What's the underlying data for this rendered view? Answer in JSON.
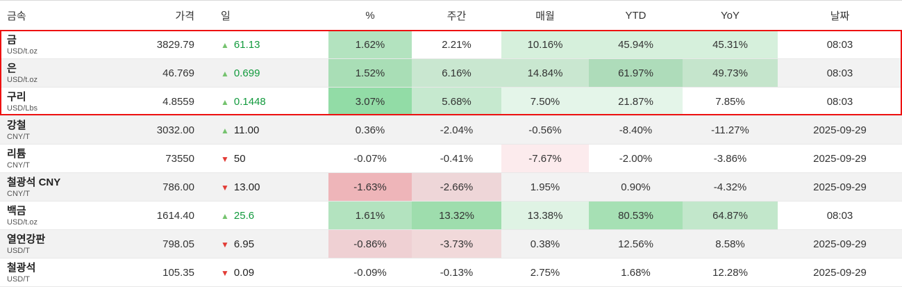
{
  "table": {
    "icons": {
      "up": "▲",
      "down": "▼"
    },
    "highlight_box": {
      "rows_covered": [
        "금",
        "은",
        "구리"
      ],
      "border_color": "#ee1111"
    },
    "columns": [
      {
        "key": "name",
        "label": "금속"
      },
      {
        "key": "price",
        "label": "가격"
      },
      {
        "key": "day",
        "label": "일"
      },
      {
        "key": "pct",
        "label": "%"
      },
      {
        "key": "week",
        "label": "주간"
      },
      {
        "key": "month",
        "label": "매월"
      },
      {
        "key": "ytd",
        "label": "YTD"
      },
      {
        "key": "yoy",
        "label": "YoY"
      },
      {
        "key": "date",
        "label": "날짜"
      }
    ],
    "rows": [
      {
        "name": "금",
        "unit": "USD/t.oz",
        "price": "3829.79",
        "direction": "up",
        "day": "61.13",
        "day_color": "green",
        "cells": {
          "pct": {
            "text": "1.62%",
            "bg": "#b3e3bf"
          },
          "week": {
            "text": "2.21%",
            "bg": null
          },
          "month": {
            "text": "10.16%",
            "bg": "#d6f0dc"
          },
          "ytd": {
            "text": "45.94%",
            "bg": "#d6f0dc"
          },
          "yoy": {
            "text": "45.31%",
            "bg": "#d6f0dc"
          }
        },
        "date": "08:03"
      },
      {
        "name": "은",
        "unit": "USD/t.oz",
        "price": "46.769",
        "direction": "up",
        "day": "0.699",
        "day_color": "green",
        "cells": {
          "pct": {
            "text": "1.52%",
            "bg": "#a9deb6"
          },
          "week": {
            "text": "6.16%",
            "bg": "#c9e7d0"
          },
          "month": {
            "text": "14.84%",
            "bg": "#c9e7d0"
          },
          "ytd": {
            "text": "61.97%",
            "bg": "#aedcba"
          },
          "yoy": {
            "text": "49.73%",
            "bg": "#c5e5cc"
          }
        },
        "date": "08:03"
      },
      {
        "name": "구리",
        "unit": "USD/Lbs",
        "price": "4.8559",
        "direction": "up",
        "day": "0.1448",
        "day_color": "green",
        "cells": {
          "pct": {
            "text": "3.07%",
            "bg": "#92dca6"
          },
          "week": {
            "text": "5.68%",
            "bg": "#c6e9cf"
          },
          "month": {
            "text": "7.50%",
            "bg": "#e4f5e9"
          },
          "ytd": {
            "text": "21.87%",
            "bg": "#e4f5e9"
          },
          "yoy": {
            "text": "7.85%",
            "bg": null
          }
        },
        "date": "08:03"
      },
      {
        "name": "강철",
        "unit": "CNY/T",
        "price": "3032.00",
        "direction": "up",
        "day": "11.00",
        "day_color": "dark",
        "cells": {
          "pct": {
            "text": "0.36%",
            "bg": null
          },
          "week": {
            "text": "-2.04%",
            "bg": null
          },
          "month": {
            "text": "-0.56%",
            "bg": null
          },
          "ytd": {
            "text": "-8.40%",
            "bg": null
          },
          "yoy": {
            "text": "-11.27%",
            "bg": null
          }
        },
        "date": "2025-09-29"
      },
      {
        "name": "리튬",
        "unit": "CNY/T",
        "price": "73550",
        "direction": "down",
        "day": "50",
        "day_color": "dark",
        "cells": {
          "pct": {
            "text": "-0.07%",
            "bg": null
          },
          "week": {
            "text": "-0.41%",
            "bg": null
          },
          "month": {
            "text": "-7.67%",
            "bg": "#fcebed"
          },
          "ytd": {
            "text": "-2.00%",
            "bg": null
          },
          "yoy": {
            "text": "-3.86%",
            "bg": null
          }
        },
        "date": "2025-09-29"
      },
      {
        "name": "철광석 CNY",
        "unit": "CNY/T",
        "price": "786.00",
        "direction": "down",
        "day": "13.00",
        "day_color": "dark",
        "cells": {
          "pct": {
            "text": "-1.63%",
            "bg": "#eeb5b9"
          },
          "week": {
            "text": "-2.66%",
            "bg": "#eed6d8"
          },
          "month": {
            "text": "1.95%",
            "bg": null
          },
          "ytd": {
            "text": "0.90%",
            "bg": null
          },
          "yoy": {
            "text": "-4.32%",
            "bg": null
          }
        },
        "date": "2025-09-29"
      },
      {
        "name": "백금",
        "unit": "USD/t.oz",
        "price": "1614.40",
        "direction": "up",
        "day": "25.6",
        "day_color": "green",
        "cells": {
          "pct": {
            "text": "1.61%",
            "bg": "#b3e3bf"
          },
          "week": {
            "text": "13.32%",
            "bg": "#9eddad"
          },
          "month": {
            "text": "13.38%",
            "bg": "#dff3e4"
          },
          "ytd": {
            "text": "80.53%",
            "bg": "#a6e0b4"
          },
          "yoy": {
            "text": "64.87%",
            "bg": "#c2e7cb"
          }
        },
        "date": "08:03"
      },
      {
        "name": "열연강판",
        "unit": "USD/T",
        "price": "798.05",
        "direction": "down",
        "day": "6.95",
        "day_color": "dark",
        "cells": {
          "pct": {
            "text": "-0.86%",
            "bg": "#efd0d3"
          },
          "week": {
            "text": "-3.73%",
            "bg": "#f1d9da"
          },
          "month": {
            "text": "0.38%",
            "bg": null
          },
          "ytd": {
            "text": "12.56%",
            "bg": null
          },
          "yoy": {
            "text": "8.58%",
            "bg": null
          }
        },
        "date": "2025-09-29"
      },
      {
        "name": "철광석",
        "unit": "USD/T",
        "price": "105.35",
        "direction": "down",
        "day": "0.09",
        "day_color": "dark",
        "cells": {
          "pct": {
            "text": "-0.09%",
            "bg": null
          },
          "week": {
            "text": "-0.13%",
            "bg": null
          },
          "month": {
            "text": "2.75%",
            "bg": null
          },
          "ytd": {
            "text": "1.68%",
            "bg": null
          },
          "yoy": {
            "text": "12.28%",
            "bg": null
          }
        },
        "date": "2025-09-29"
      }
    ]
  }
}
